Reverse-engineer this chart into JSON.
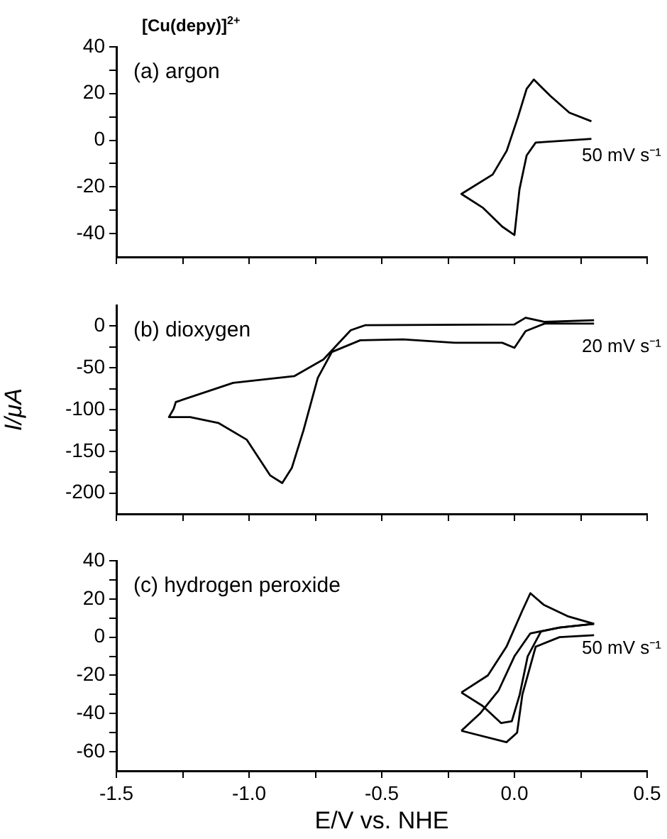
{
  "chart_data": [
    {
      "type": "line",
      "title": "[Cu(depy)]$^{2+}$",
      "annotations": [
        "(a) argon",
        "50 mV s⁻¹"
      ],
      "marker": "none",
      "tick_labels": "y",
      "xlim": [
        -1.5,
        0.5
      ],
      "xticks": [
        -1.5,
        {
          "value": -1.25,
          "label": null
        },
        -1.0,
        {
          "value": -0.75,
          "label": null
        },
        -0.5,
        {
          "value": -0.25,
          "label": null
        },
        0.0,
        {
          "value": 0.25,
          "label": null
        },
        0.5
      ],
      "ylim": [
        -50,
        40
      ],
      "yticks": [
        -40,
        {
          "value": -30,
          "label": null
        },
        -20,
        {
          "value": -10,
          "label": null
        },
        0,
        {
          "value": 10,
          "label": null
        },
        20,
        {
          "value": 30,
          "label": null
        },
        40
      ],
      "series": [
        {
          "color": "#000000",
          "x": [
            0.29,
            0.08,
            0.046,
            0.019,
            0.0,
            -0.046,
            -0.118,
            -0.2,
            -0.082,
            -0.029,
            0.013,
            0.046,
            0.073,
            0.135,
            0.207,
            0.29
          ],
          "values": [
            0.6,
            -1,
            -6.5,
            -21,
            -40.6,
            -37,
            -29,
            -23,
            -14.7,
            -4.5,
            9.8,
            22,
            26,
            19,
            11.8,
            8.1
          ]
        }
      ]
    },
    {
      "type": "line",
      "ylabel": "I/μA",
      "annotations": [
        "(b) dioxygen",
        "20 mV s⁻¹"
      ],
      "marker": "none",
      "tick_labels": "y",
      "xlim": [
        -1.5,
        0.5
      ],
      "xticks": [
        -1.5,
        {
          "value": -1.25,
          "label": null
        },
        -1.0,
        {
          "value": -0.75,
          "label": null
        },
        -0.5,
        {
          "value": -0.25,
          "label": null
        },
        0.0,
        {
          "value": 0.25,
          "label": null
        },
        0.5
      ],
      "ylim": [
        -225,
        25
      ],
      "yticks": [
        -200,
        {
          "value": -175,
          "label": null
        },
        -150,
        {
          "value": -125,
          "label": null
        },
        -100,
        {
          "value": -75,
          "label": null
        },
        -50,
        {
          "value": -25,
          "label": null
        },
        0
      ],
      "series": [
        {
          "color": "#000000",
          "x": [
            0.3,
            0.114,
            0.042,
            0.0,
            -0.046,
            -0.225,
            -0.42,
            -0.581,
            -0.688,
            -0.741,
            -0.795,
            -0.839,
            -0.875,
            -0.92,
            -1.009,
            -1.116,
            -1.222,
            -1.302,
            -1.284,
            -1.276,
            -1.06,
            -0.83,
            -0.72,
            -0.617,
            -0.563,
            0.0,
            0.042,
            0.114,
            0.3
          ],
          "values": [
            3,
            3,
            -6,
            -26,
            -20,
            -20,
            -16,
            -17,
            -31,
            -62,
            -125,
            -170,
            -188,
            -179,
            -136,
            -116,
            -109,
            -109,
            -99,
            -91,
            -68,
            -60,
            -40,
            -5,
            1,
            2,
            10,
            5,
            7
          ]
        }
      ]
    },
    {
      "type": "line",
      "xlabel": "E/V vs. NHE",
      "annotations": [
        "(c) hydrogen peroxide",
        "50 mV s⁻¹"
      ],
      "marker": "none",
      "xlim": [
        -1.5,
        0.5
      ],
      "xticks": [
        -1.5,
        {
          "value": -1.25,
          "label": null
        },
        {
          "value": -1.0,
          "label": "-1.0"
        },
        {
          "value": -0.75,
          "label": null
        },
        -0.5,
        {
          "value": -0.25,
          "label": null
        },
        {
          "value": 0.0,
          "label": "0.0"
        },
        {
          "value": 0.25,
          "label": null
        },
        0.5
      ],
      "ylim": [
        -70,
        40
      ],
      "yticks": [
        -60,
        {
          "value": -50,
          "label": null
        },
        -40,
        {
          "value": -30,
          "label": null
        },
        -20,
        {
          "value": -10,
          "label": null
        },
        0,
        {
          "value": 10,
          "label": null
        },
        20,
        {
          "value": 30,
          "label": null
        },
        40
      ],
      "series": [
        {
          "color": "#000000",
          "x": [
            -0.2,
            -0.1,
            -0.03,
            0.03,
            0.06,
            0.11,
            0.2,
            0.3
          ],
          "values": [
            -29,
            -20,
            -5,
            14,
            23,
            17,
            11,
            7
          ]
        },
        {
          "color": "#000000",
          "x": [
            -0.2,
            -0.12,
            -0.05,
            -0.01,
            0.02,
            0.05,
            0.1,
            0.17,
            0.3
          ],
          "values": [
            -29,
            -36,
            -45,
            -44,
            -30,
            -10,
            3,
            5,
            7
          ]
        },
        {
          "color": "#000000",
          "x": [
            -0.2,
            -0.03,
            0.01,
            0.03,
            0.08,
            0.17,
            0.3
          ],
          "values": [
            -49,
            -55,
            -50,
            -30,
            -5,
            0,
            1
          ]
        },
        {
          "color": "#000000",
          "x": [
            -0.2,
            -0.13,
            -0.06,
            0.0,
            0.06,
            0.17,
            0.3
          ],
          "values": [
            -49,
            -40,
            -28,
            -10,
            2,
            5,
            7
          ]
        }
      ]
    }
  ]
}
